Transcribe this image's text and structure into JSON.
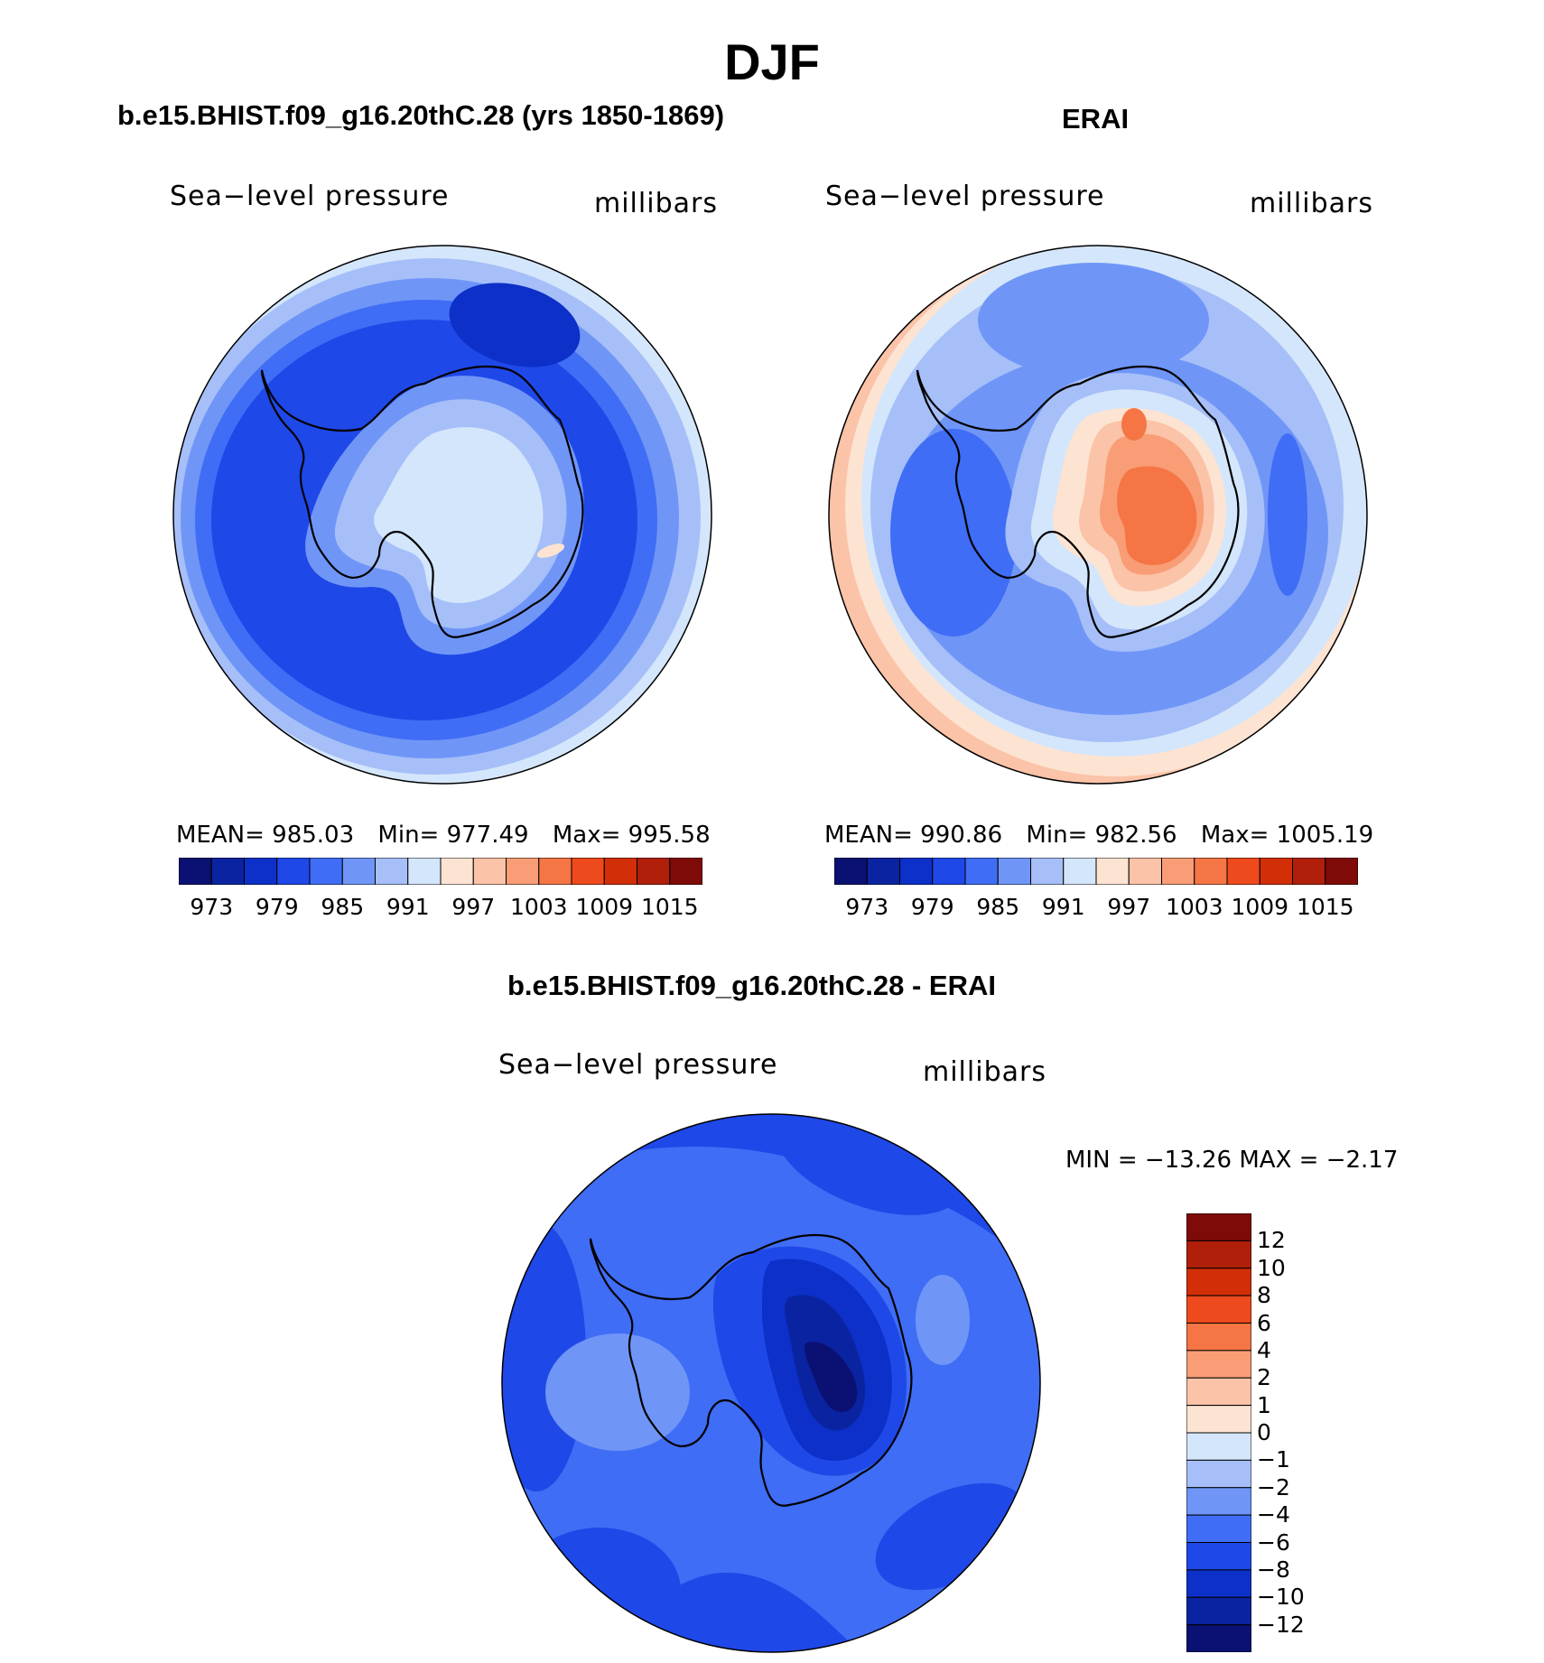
{
  "figure": {
    "title": "DJF",
    "panels": [
      {
        "title": "b.e15.BHIST.f09_g16.20thC.28 (yrs 1850-1869)",
        "variable": "Sea−level pressure",
        "units": "millibars",
        "stats": {
          "mean_label": "MEAN=",
          "mean": "985.03",
          "min_label": "Min=",
          "min": "977.49",
          "max_label": "Max=",
          "max": "995.58"
        }
      },
      {
        "title": "ERAI",
        "variable": "Sea−level pressure",
        "units": "millibars",
        "stats": {
          "mean_label": "MEAN=",
          "mean": "990.86",
          "min_label": "Min=",
          "min": "982.56",
          "max_label": "Max=",
          "max": "1005.19"
        }
      },
      {
        "title": "b.e15.BHIST.f09_g16.20thC.28 - ERAI",
        "variable": "Sea−level pressure",
        "units": "millibars",
        "stats": {
          "minmax_text": "MIN = −13.26 MAX =  −2.17"
        }
      }
    ],
    "abs_colorbar": {
      "colors": [
        "#0a1172",
        "#0a23a0",
        "#0c30c8",
        "#1f48e8",
        "#3f6df5",
        "#6f96f7",
        "#a6bff8",
        "#d4e6fb",
        "#fde3d2",
        "#fbc3a7",
        "#f89d76",
        "#f57545",
        "#ef4a1d",
        "#d22e08",
        "#b01f0a",
        "#7f0b09"
      ],
      "tick_labels": [
        "973",
        "979",
        "985",
        "991",
        "997",
        "1003",
        "1009",
        "1015"
      ]
    },
    "diff_colorbar": {
      "colors": [
        "#7f0b09",
        "#b01f0a",
        "#d22e08",
        "#ef4a1d",
        "#f57545",
        "#f89d76",
        "#fbc3a7",
        "#fde3d2",
        "#d4e6fb",
        "#a6bff8",
        "#6f96f7",
        "#3f6df5",
        "#1f48e8",
        "#0c30c8",
        "#0a23a0",
        "#0a1172"
      ],
      "tick_labels": [
        "12",
        "10",
        "8",
        "6",
        "4",
        "2",
        "1",
        "0",
        "−1",
        "−2",
        "−4",
        "−6",
        "−8",
        "−10",
        "−12"
      ]
    }
  },
  "chart_data": [
    {
      "type": "heatmap",
      "title": "b.e15.BHIST.f09_g16.20thC.28 (yrs 1850-1869)",
      "subtitle": "Sea−level pressure",
      "units": "millibars",
      "projection": "south polar stereographic",
      "mean": 985.03,
      "min": 977.49,
      "max": 995.58,
      "contour_levels": [
        973,
        976,
        979,
        982,
        985,
        988,
        991,
        994,
        997,
        1000,
        1003,
        1006,
        1009,
        1012,
        1015
      ]
    },
    {
      "type": "heatmap",
      "title": "ERAI",
      "subtitle": "Sea−level pressure",
      "units": "millibars",
      "projection": "south polar stereographic",
      "mean": 990.86,
      "min": 982.56,
      "max": 1005.19,
      "contour_levels": [
        973,
        976,
        979,
        982,
        985,
        988,
        991,
        994,
        997,
        1000,
        1003,
        1006,
        1009,
        1012,
        1015
      ]
    },
    {
      "type": "heatmap",
      "title": "b.e15.BHIST.f09_g16.20thC.28 - ERAI",
      "subtitle": "Sea−level pressure",
      "units": "millibars",
      "projection": "south polar stereographic",
      "min": -13.26,
      "max": -2.17,
      "contour_levels": [
        -12,
        -10,
        -8,
        -6,
        -4,
        -2,
        -1,
        0,
        1,
        2,
        4,
        6,
        8,
        10,
        12
      ]
    }
  ]
}
